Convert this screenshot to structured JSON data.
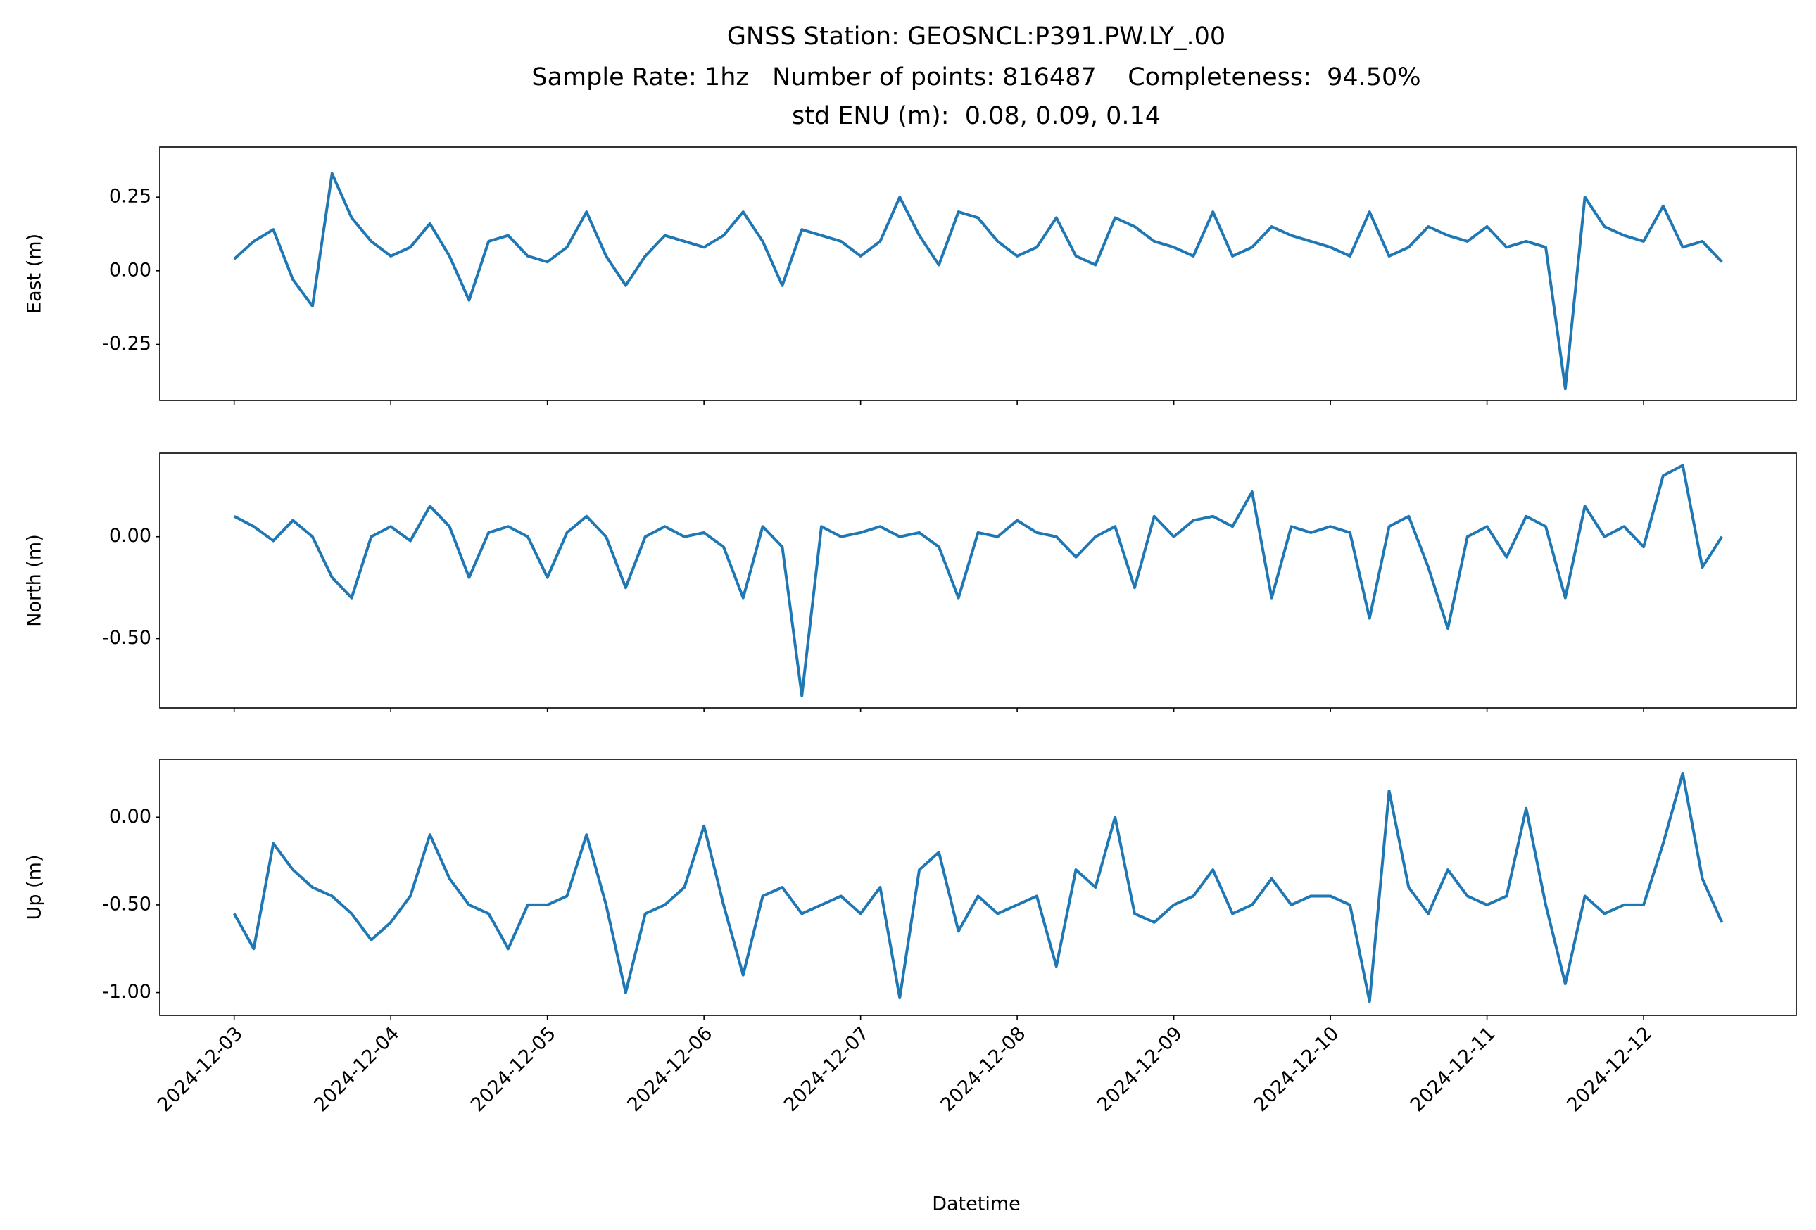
{
  "chart_data": {
    "type": "line",
    "title": "GNSS Station: GEOSNCL:P391.PW.LY_.00",
    "subtitle": [
      "Sample Rate: 1hz   Number of points: 816487    Completeness:  94.50%",
      "std ENU (m):  0.08, 0.09, 0.14"
    ],
    "xlabel": "Datetime",
    "color": "#1f77b4",
    "xlim": [
      "2024-12-02 12:36",
      "2024-12-12 23:24"
    ],
    "xticks": [
      "2024-12-03",
      "2024-12-04",
      "2024-12-05",
      "2024-12-06",
      "2024-12-07",
      "2024-12-08",
      "2024-12-09",
      "2024-12-10",
      "2024-12-11",
      "2024-12-12"
    ],
    "x": [
      "2024-12-03 00:00",
      "2024-12-03 03:00",
      "2024-12-03 06:00",
      "2024-12-03 09:00",
      "2024-12-03 12:00",
      "2024-12-03 15:00",
      "2024-12-03 18:00",
      "2024-12-03 21:00",
      "2024-12-04 00:00",
      "2024-12-04 03:00",
      "2024-12-04 06:00",
      "2024-12-04 09:00",
      "2024-12-04 12:00",
      "2024-12-04 15:00",
      "2024-12-04 18:00",
      "2024-12-04 21:00",
      "2024-12-05 00:00",
      "2024-12-05 03:00",
      "2024-12-05 06:00",
      "2024-12-05 09:00",
      "2024-12-05 12:00",
      "2024-12-05 15:00",
      "2024-12-05 18:00",
      "2024-12-05 21:00",
      "2024-12-06 00:00",
      "2024-12-06 03:00",
      "2024-12-06 06:00",
      "2024-12-06 09:00",
      "2024-12-06 12:00",
      "2024-12-06 15:00",
      "2024-12-06 18:00",
      "2024-12-06 21:00",
      "2024-12-07 00:00",
      "2024-12-07 03:00",
      "2024-12-07 06:00",
      "2024-12-07 09:00",
      "2024-12-07 12:00",
      "2024-12-07 15:00",
      "2024-12-07 18:00",
      "2024-12-07 21:00",
      "2024-12-08 00:00",
      "2024-12-08 03:00",
      "2024-12-08 06:00",
      "2024-12-08 09:00",
      "2024-12-08 12:00",
      "2024-12-08 15:00",
      "2024-12-08 18:00",
      "2024-12-08 21:00",
      "2024-12-09 00:00",
      "2024-12-09 03:00",
      "2024-12-09 06:00",
      "2024-12-09 09:00",
      "2024-12-09 12:00",
      "2024-12-09 15:00",
      "2024-12-09 18:00",
      "2024-12-09 21:00",
      "2024-12-10 00:00",
      "2024-12-10 03:00",
      "2024-12-10 06:00",
      "2024-12-10 09:00",
      "2024-12-10 12:00",
      "2024-12-10 15:00",
      "2024-12-10 18:00",
      "2024-12-10 21:00",
      "2024-12-11 00:00",
      "2024-12-11 03:00",
      "2024-12-11 06:00",
      "2024-12-11 09:00",
      "2024-12-11 12:00",
      "2024-12-11 15:00",
      "2024-12-11 18:00",
      "2024-12-11 21:00",
      "2024-12-12 00:00",
      "2024-12-12 03:00",
      "2024-12-12 06:00",
      "2024-12-12 09:00",
      "2024-12-12 12:00"
    ],
    "panels": [
      {
        "ylabel": "East (m)",
        "ylim": [
          -0.44,
          0.42
        ],
        "yticks": [
          {
            "value": 0.25,
            "label": "0.25"
          },
          {
            "value": 0,
            "label": "0.00"
          },
          {
            "value": -0.25,
            "label": "-0.25"
          }
        ],
        "values": [
          0.04,
          0.1,
          0.14,
          -0.03,
          -0.12,
          0.33,
          0.18,
          0.1,
          0.05,
          0.08,
          0.16,
          0.05,
          -0.1,
          0.1,
          0.12,
          0.05,
          0.03,
          0.08,
          0.2,
          0.05,
          -0.05,
          0.05,
          0.12,
          0.1,
          0.08,
          0.12,
          0.2,
          0.1,
          -0.05,
          0.14,
          0.12,
          0.1,
          0.05,
          0.1,
          0.25,
          0.12,
          0.02,
          0.2,
          0.18,
          0.1,
          0.05,
          0.08,
          0.18,
          0.05,
          0.02,
          0.18,
          0.15,
          0.1,
          0.08,
          0.05,
          0.2,
          0.05,
          0.08,
          0.15,
          0.12,
          0.1,
          0.08,
          0.05,
          0.2,
          0.05,
          0.08,
          0.15,
          0.12,
          0.1,
          0.15,
          0.08,
          0.1,
          0.08,
          -0.4,
          0.25,
          0.15,
          0.12,
          0.1,
          0.22,
          0.08,
          0.1,
          0.03
        ]
      },
      {
        "ylabel": "North (m)",
        "ylim": [
          -0.84,
          0.41
        ],
        "yticks": [
          {
            "value": 0,
            "label": "0.00"
          },
          {
            "value": -0.5,
            "label": "-0.50"
          }
        ],
        "values": [
          0.1,
          0.05,
          -0.02,
          0.08,
          0.0,
          -0.2,
          -0.3,
          0.0,
          0.05,
          -0.02,
          0.15,
          0.05,
          -0.2,
          0.02,
          0.05,
          0.0,
          -0.2,
          0.02,
          0.1,
          0.0,
          -0.25,
          0.0,
          0.05,
          0.0,
          0.02,
          -0.05,
          -0.3,
          0.05,
          -0.05,
          -0.78,
          0.05,
          0.0,
          0.02,
          0.05,
          0.0,
          0.02,
          -0.05,
          -0.3,
          0.02,
          0.0,
          0.08,
          0.02,
          0.0,
          -0.1,
          0.0,
          0.05,
          -0.25,
          0.1,
          0.0,
          0.08,
          0.1,
          0.05,
          0.22,
          -0.3,
          0.05,
          0.02,
          0.05,
          0.02,
          -0.4,
          0.05,
          0.1,
          -0.15,
          -0.45,
          0.0,
          0.05,
          -0.1,
          0.1,
          0.05,
          -0.3,
          0.15,
          0.0,
          0.05,
          -0.05,
          0.3,
          0.35,
          -0.15,
          0.0
        ]
      },
      {
        "ylabel": "Up (m)",
        "ylim": [
          -1.13,
          0.33
        ],
        "yticks": [
          {
            "value": 0,
            "label": "0.00"
          },
          {
            "value": -0.5,
            "label": "-0.50"
          },
          {
            "value": -1,
            "label": "-1.00"
          }
        ],
        "values": [
          -0.55,
          -0.75,
          -0.15,
          -0.3,
          -0.4,
          -0.45,
          -0.55,
          -0.7,
          -0.6,
          -0.45,
          -0.1,
          -0.35,
          -0.5,
          -0.55,
          -0.75,
          -0.5,
          -0.5,
          -0.45,
          -0.1,
          -0.5,
          -1.0,
          -0.55,
          -0.5,
          -0.4,
          -0.05,
          -0.5,
          -0.9,
          -0.45,
          -0.4,
          -0.55,
          -0.5,
          -0.45,
          -0.55,
          -0.4,
          -1.03,
          -0.3,
          -0.2,
          -0.65,
          -0.45,
          -0.55,
          -0.5,
          -0.45,
          -0.85,
          -0.3,
          -0.4,
          0.0,
          -0.55,
          -0.6,
          -0.5,
          -0.45,
          -0.3,
          -0.55,
          -0.5,
          -0.35,
          -0.5,
          -0.45,
          -0.45,
          -0.5,
          -1.05,
          0.15,
          -0.4,
          -0.55,
          -0.3,
          -0.45,
          -0.5,
          -0.45,
          0.05,
          -0.5,
          -0.95,
          -0.45,
          -0.55,
          -0.5,
          -0.5,
          -0.15,
          0.25,
          -0.35,
          -0.6
        ]
      }
    ]
  }
}
